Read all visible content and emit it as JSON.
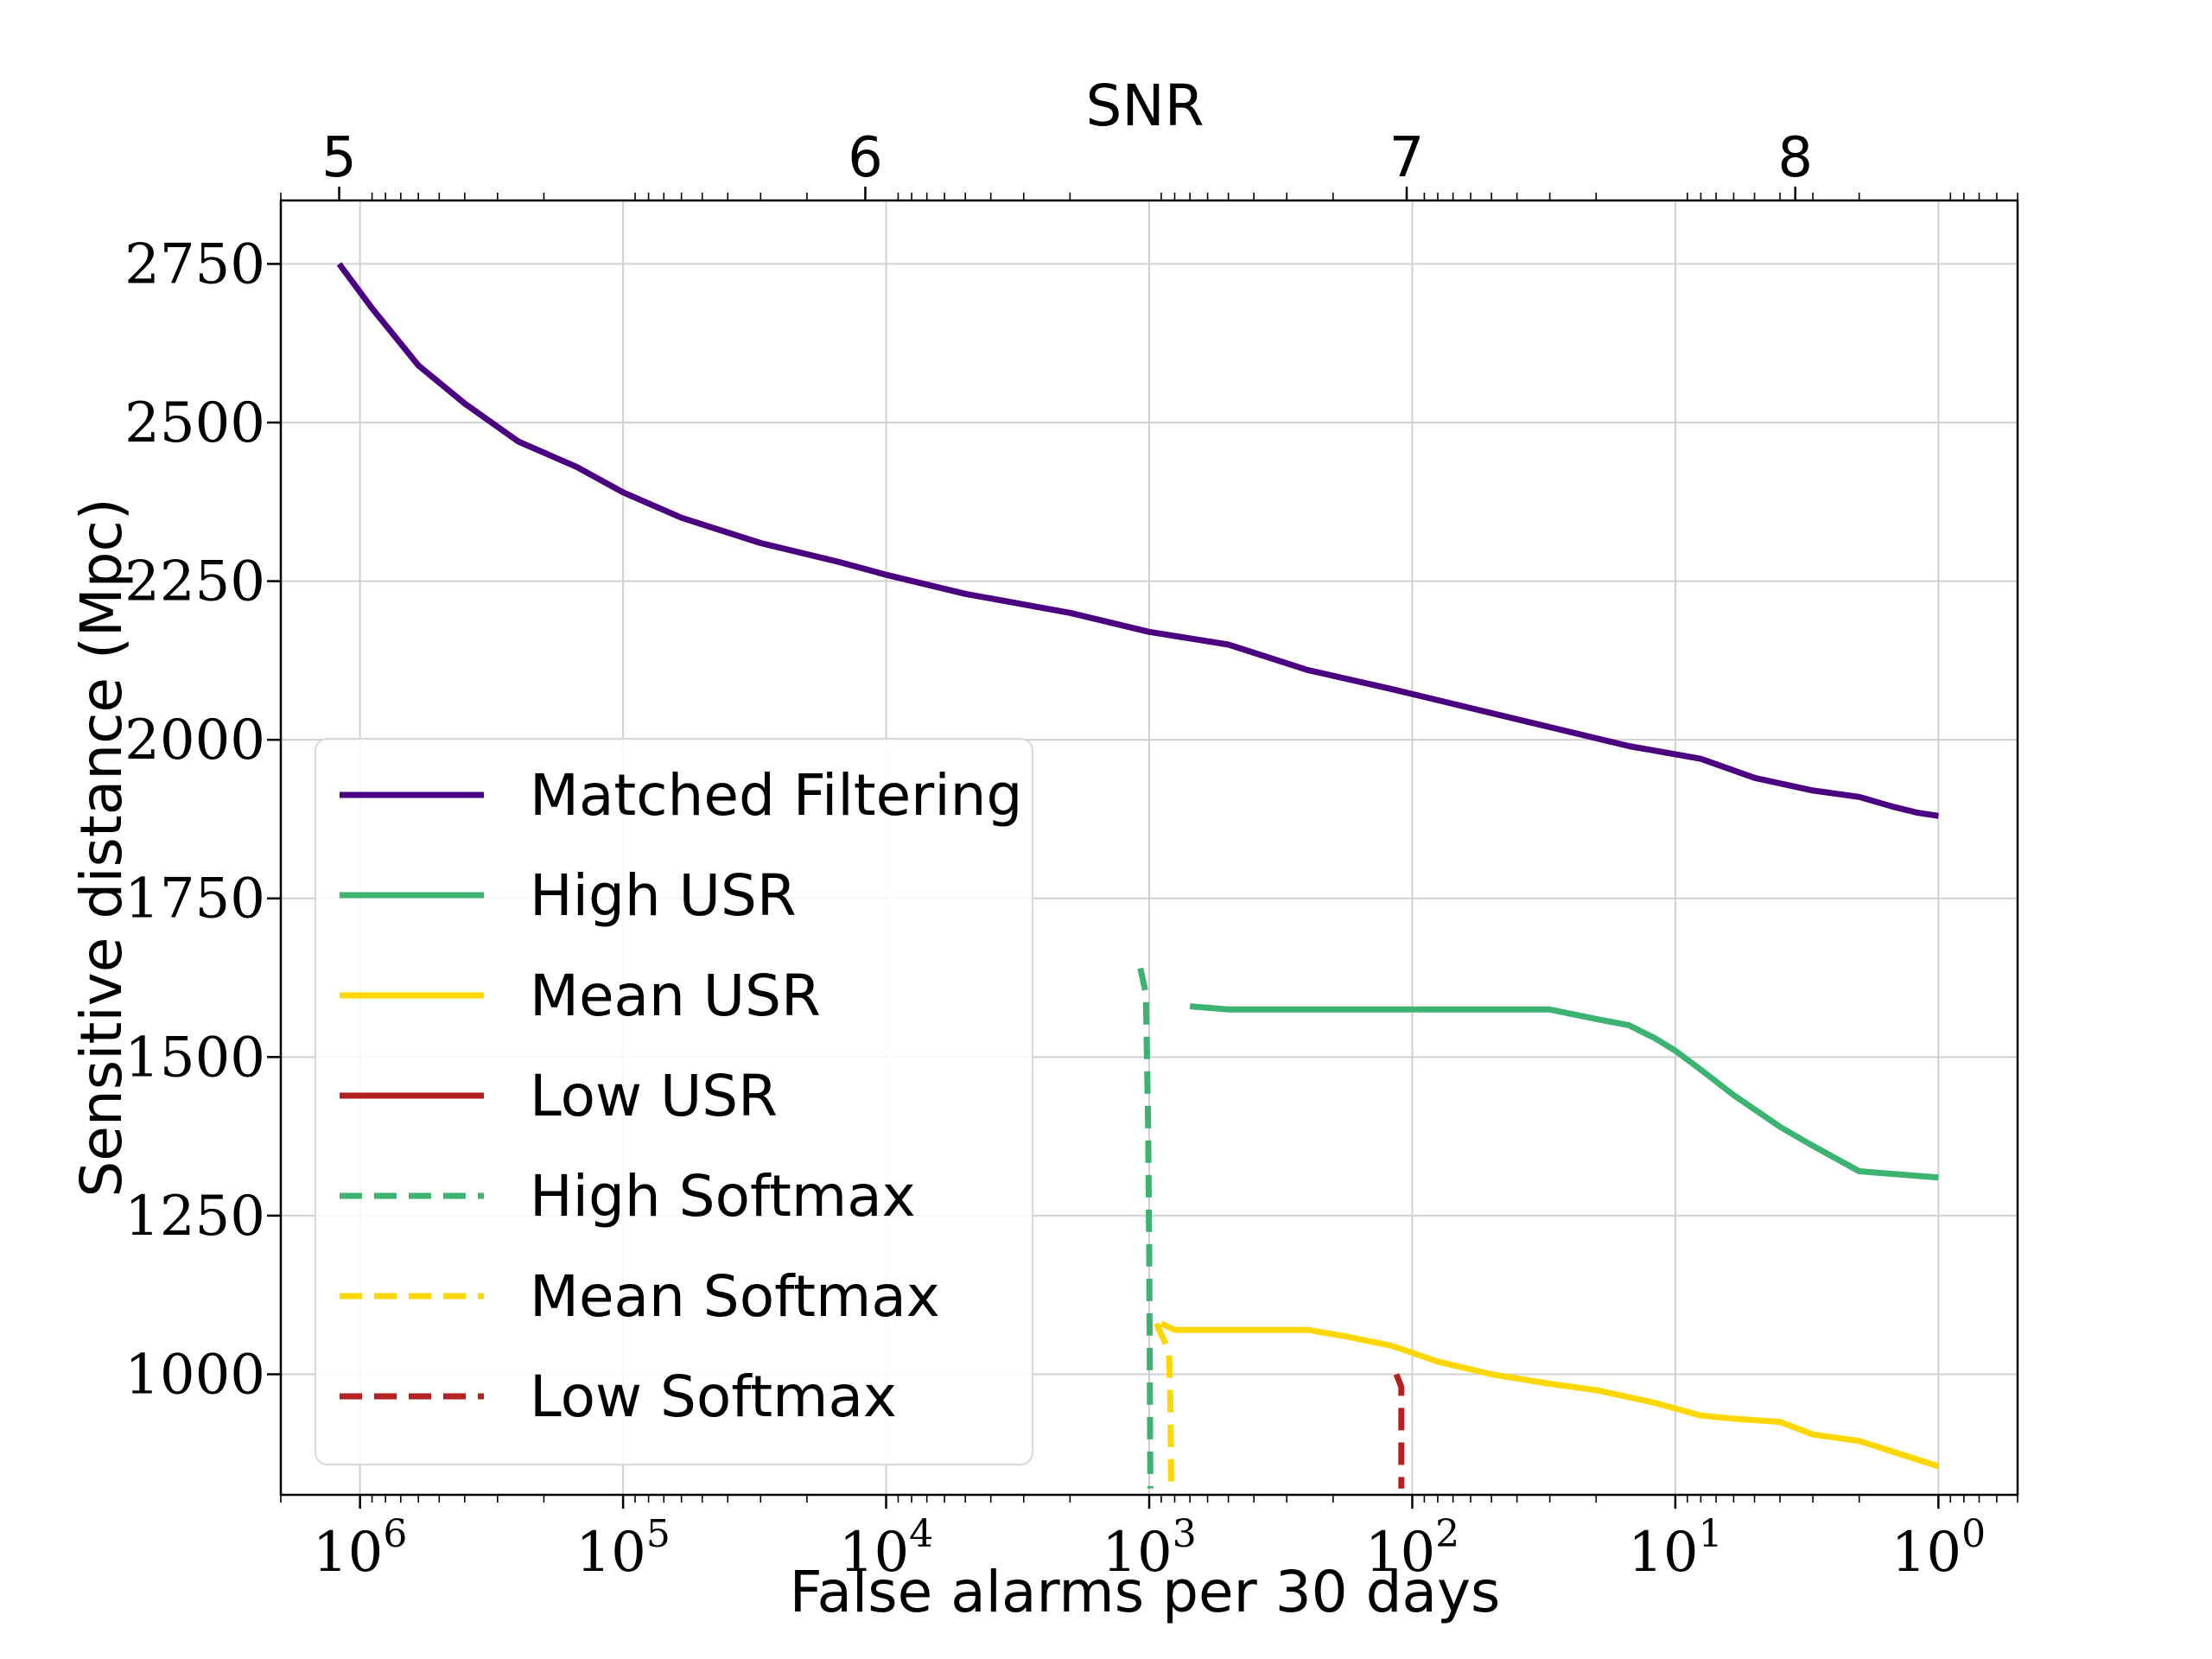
{
  "chart_data": {
    "type": "line",
    "xlabel": "False alarms per 30 days",
    "ylabel": "Sensitive distance (Mpc)",
    "top_xlabel": "SNR",
    "x_scale": "log",
    "x_reversed": true,
    "xlim": [
      2000000,
      0.5
    ],
    "ylim": [
      810,
      2850
    ],
    "grid": true,
    "legend_position": "lower-left",
    "x_ticks": [
      {
        "value": 1000000,
        "base": "10",
        "exp": "6"
      },
      {
        "value": 100000,
        "base": "10",
        "exp": "5"
      },
      {
        "value": 10000,
        "base": "10",
        "exp": "4"
      },
      {
        "value": 1000,
        "base": "10",
        "exp": "3"
      },
      {
        "value": 100,
        "base": "10",
        "exp": "2"
      },
      {
        "value": 10,
        "base": "10",
        "exp": "1"
      },
      {
        "value": 1,
        "base": "10",
        "exp": "0"
      }
    ],
    "y_ticks": [
      {
        "value": 1000,
        "label": "1000"
      },
      {
        "value": 1250,
        "label": "1250"
      },
      {
        "value": 1500,
        "label": "1500"
      },
      {
        "value": 1750,
        "label": "1750"
      },
      {
        "value": 2000,
        "label": "2000"
      },
      {
        "value": 2250,
        "label": "2250"
      },
      {
        "value": 2500,
        "label": "2500"
      },
      {
        "value": 2750,
        "label": "2750"
      }
    ],
    "snr_ticks": [
      {
        "far": 1200000,
        "label": "5"
      },
      {
        "far": 12000,
        "label": "6"
      },
      {
        "far": 105,
        "label": "7"
      },
      {
        "far": 3.5,
        "label": "8"
      }
    ],
    "series": [
      {
        "name": "Matched Filtering",
        "color": "#4b0082",
        "dash": false,
        "points": [
          [
            1200000,
            2750
          ],
          [
            900000,
            2680
          ],
          [
            600000,
            2590
          ],
          [
            400000,
            2530
          ],
          [
            250000,
            2470
          ],
          [
            150000,
            2430
          ],
          [
            100000,
            2390
          ],
          [
            60000,
            2350
          ],
          [
            30000,
            2310
          ],
          [
            15000,
            2280
          ],
          [
            10000,
            2260
          ],
          [
            5000,
            2230
          ],
          [
            2000,
            2200
          ],
          [
            1000,
            2170
          ],
          [
            500,
            2150
          ],
          [
            250,
            2110
          ],
          [
            120,
            2080
          ],
          [
            60,
            2050
          ],
          [
            30,
            2020
          ],
          [
            15,
            1990
          ],
          [
            8,
            1970
          ],
          [
            5,
            1940
          ],
          [
            3,
            1920
          ],
          [
            2,
            1910
          ],
          [
            1.5,
            1895
          ],
          [
            1.2,
            1885
          ],
          [
            1,
            1880
          ]
        ]
      },
      {
        "name": "High USR",
        "color": "#3cb371",
        "dash": false,
        "points": [
          [
            700,
            1580
          ],
          [
            500,
            1575
          ],
          [
            200,
            1575
          ],
          [
            100,
            1575
          ],
          [
            50,
            1575
          ],
          [
            30,
            1575
          ],
          [
            20,
            1560
          ],
          [
            15,
            1550
          ],
          [
            12,
            1530
          ],
          [
            10,
            1510
          ],
          [
            8,
            1480
          ],
          [
            6,
            1440
          ],
          [
            4,
            1390
          ],
          [
            3,
            1360
          ],
          [
            2,
            1320
          ],
          [
            1,
            1310
          ]
        ]
      },
      {
        "name": "Mean USR",
        "color": "#ffd700",
        "dash": false,
        "points": [
          [
            900,
            1080
          ],
          [
            800,
            1070
          ],
          [
            500,
            1070
          ],
          [
            250,
            1070
          ],
          [
            180,
            1060
          ],
          [
            120,
            1045
          ],
          [
            80,
            1020
          ],
          [
            50,
            1000
          ],
          [
            30,
            985
          ],
          [
            20,
            975
          ],
          [
            12,
            955
          ],
          [
            8,
            935
          ],
          [
            6,
            930
          ],
          [
            4,
            925
          ],
          [
            3,
            905
          ],
          [
            2,
            895
          ],
          [
            1,
            855
          ]
        ]
      },
      {
        "name": "Low USR",
        "color": "#b22222",
        "dash": false,
        "points": []
      },
      {
        "name": "High Softmax",
        "color": "#3cb371",
        "dash": true,
        "points": [
          [
            1080,
            1640
          ],
          [
            1030,
            1600
          ],
          [
            1010,
            1400
          ],
          [
            1000,
            1200
          ],
          [
            995,
            1000
          ],
          [
            990,
            820
          ]
        ]
      },
      {
        "name": "Mean Softmax",
        "color": "#ffd700",
        "dash": true,
        "points": [
          [
            940,
            1080
          ],
          [
            870,
            1050
          ],
          [
            840,
            1030
          ],
          [
            830,
            950
          ],
          [
            825,
            820
          ]
        ]
      },
      {
        "name": "Low Softmax",
        "color": "#b22222",
        "dash": true,
        "points": [
          [
            115,
            1000
          ],
          [
            110,
            980
          ],
          [
            110,
            900
          ],
          [
            110,
            820
          ]
        ]
      }
    ]
  }
}
